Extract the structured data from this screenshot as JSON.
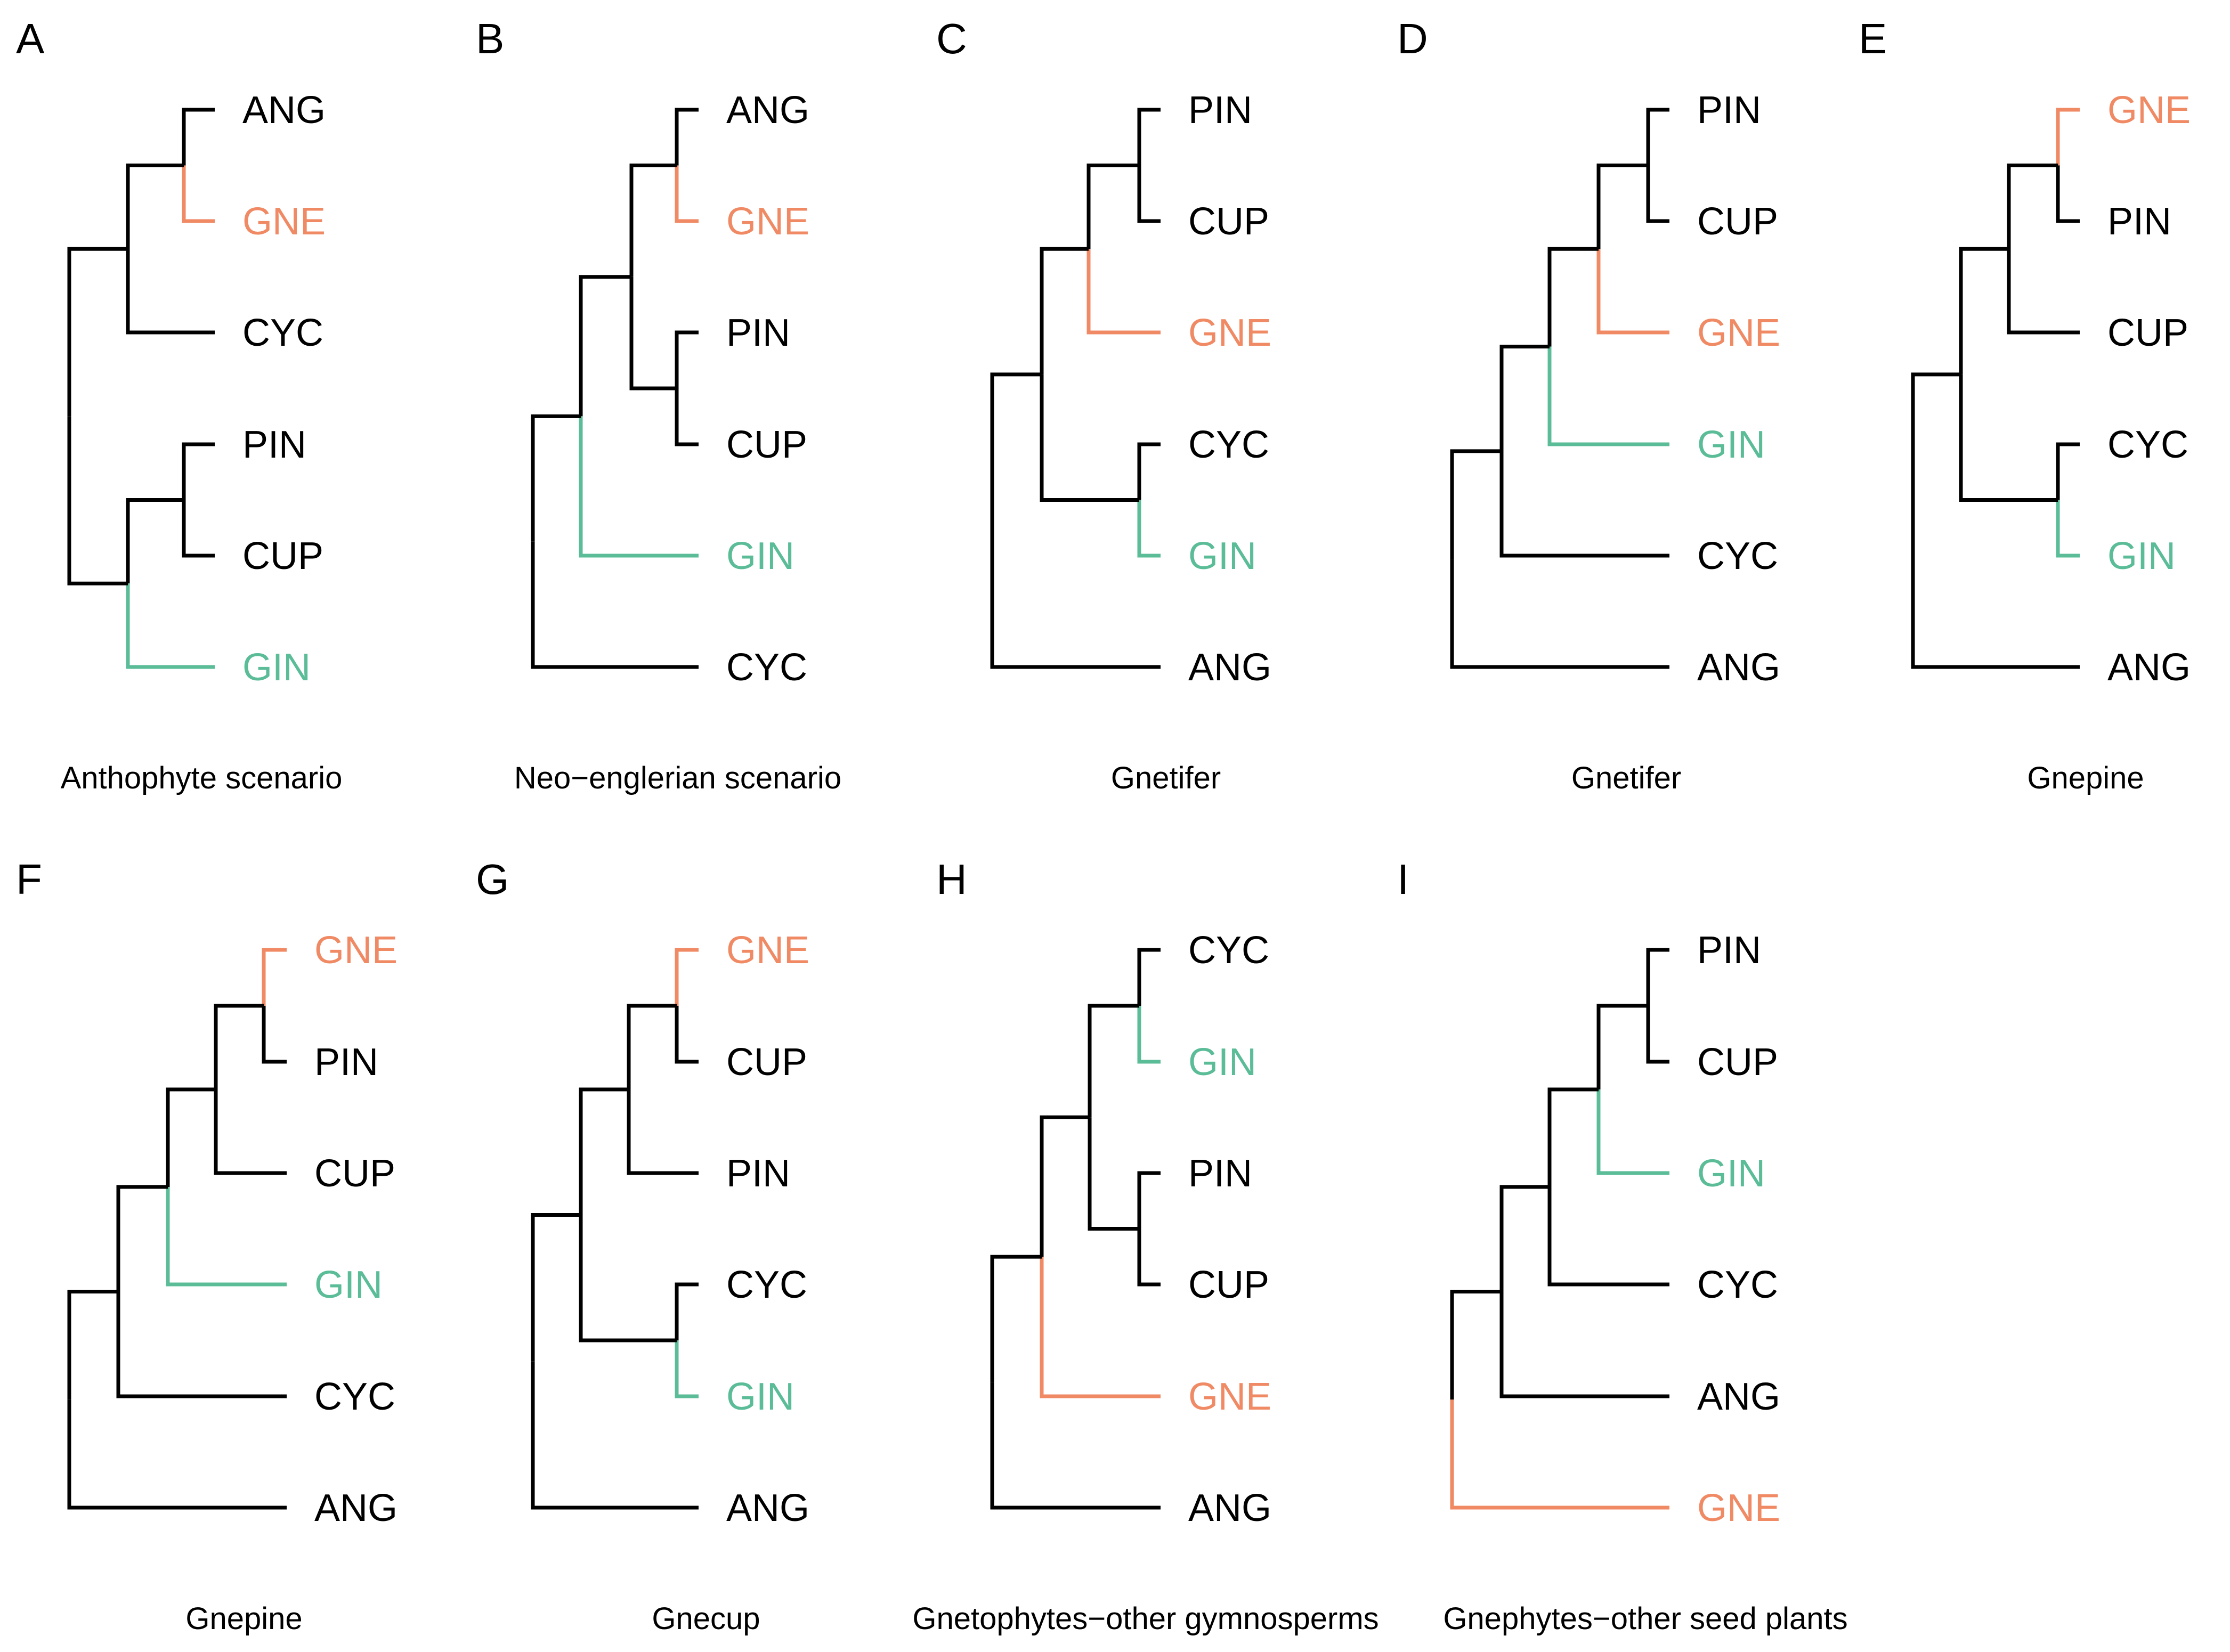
{
  "figure": {
    "colors": {
      "default": "#000000",
      "GNE": "#F08A64",
      "GIN": "#5BBC98"
    },
    "panels": [
      {
        "letter": "A",
        "caption": "Anthophyte scenario",
        "tips": [
          "ANG",
          "GNE",
          "CYC",
          "PIN",
          "CUP",
          "GIN"
        ],
        "tree": [
          [
            [
              "ANG",
              "GNE"
            ],
            "CYC"
          ],
          [
            [
              "PIN",
              "CUP"
            ],
            "GIN"
          ]
        ]
      },
      {
        "letter": "B",
        "caption": "Neo−englerian scenario",
        "tips": [
          "ANG",
          "GNE",
          "PIN",
          "CUP",
          "GIN",
          "CYC"
        ],
        "tree": [
          [
            [
              [
                "ANG",
                "GNE"
              ],
              [
                "PIN",
                "CUP"
              ]
            ],
            "GIN"
          ],
          "CYC"
        ]
      },
      {
        "letter": "C",
        "caption": "Gnetifer",
        "tips": [
          "PIN",
          "CUP",
          "GNE",
          "CYC",
          "GIN",
          "ANG"
        ],
        "tree": [
          [
            [
              [
                "PIN",
                "CUP"
              ],
              "GNE"
            ],
            [
              "CYC",
              "GIN"
            ]
          ],
          "ANG"
        ]
      },
      {
        "letter": "D",
        "caption": "Gnetifer",
        "tips": [
          "PIN",
          "CUP",
          "GNE",
          "GIN",
          "CYC",
          "ANG"
        ],
        "tree": [
          [
            [
              [
                [
                  "PIN",
                  "CUP"
                ],
                "GNE"
              ],
              "GIN"
            ],
            "CYC"
          ],
          "ANG"
        ]
      },
      {
        "letter": "E",
        "caption": "Gnepine",
        "tips": [
          "GNE",
          "PIN",
          "CUP",
          "CYC",
          "GIN",
          "ANG"
        ],
        "tree": [
          [
            [
              [
                "GNE",
                "PIN"
              ],
              "CUP"
            ],
            [
              "CYC",
              "GIN"
            ]
          ],
          "ANG"
        ]
      },
      {
        "letter": "F",
        "caption": "Gnepine",
        "tips": [
          "GNE",
          "PIN",
          "CUP",
          "GIN",
          "CYC",
          "ANG"
        ],
        "tree": [
          [
            [
              [
                [
                  "GNE",
                  "PIN"
                ],
                "CUP"
              ],
              "GIN"
            ],
            "CYC"
          ],
          "ANG"
        ]
      },
      {
        "letter": "G",
        "caption": "Gnecup",
        "tips": [
          "GNE",
          "CUP",
          "PIN",
          "CYC",
          "GIN",
          "ANG"
        ],
        "tree": [
          [
            [
              [
                "GNE",
                "CUP"
              ],
              "PIN"
            ],
            [
              "CYC",
              "GIN"
            ]
          ],
          "ANG"
        ]
      },
      {
        "letter": "H",
        "caption": "Gnetophytes−other gymnosperms",
        "tips": [
          "CYC",
          "GIN",
          "PIN",
          "CUP",
          "GNE",
          "ANG"
        ],
        "tree": [
          [
            [
              [
                "CYC",
                "GIN"
              ],
              [
                "PIN",
                "CUP"
              ]
            ],
            "GNE"
          ],
          "ANG"
        ]
      },
      {
        "letter": "I",
        "caption": "Gnephytes−other seed plants",
        "tips": [
          "PIN",
          "CUP",
          "GIN",
          "CYC",
          "ANG",
          "GNE"
        ],
        "tree": [
          [
            [
              [
                [
                  "PIN",
                  "CUP"
                ],
                "GIN"
              ],
              "CYC"
            ],
            "ANG"
          ],
          "GNE"
        ]
      }
    ]
  }
}
